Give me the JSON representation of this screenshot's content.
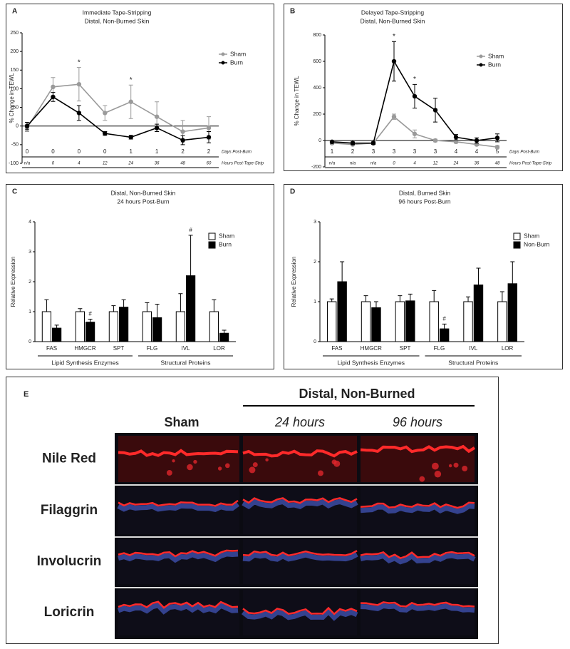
{
  "chart_data": [
    {
      "type": "line",
      "label": "A",
      "title": "Immediate Tape-Stripping",
      "subtitle": "Distal, Non-Burned Skin",
      "y_label": "% Change in TEWL",
      "categories": [
        "n/a",
        "0",
        "4",
        "12",
        "24",
        "36",
        "48",
        "60"
      ],
      "categories_label": "Hours Post-Tape-Strip",
      "days": [
        0,
        0,
        0,
        0,
        1,
        1,
        2,
        2
      ],
      "days_label": "Days Post-Burn",
      "series": [
        {
          "name": "Sham",
          "color": "#9a9a9a",
          "values": [
            -5,
            105,
            112,
            35,
            65,
            25,
            -15,
            -5
          ],
          "errors": [
            10,
            25,
            45,
            20,
            45,
            40,
            30,
            30
          ]
        },
        {
          "name": "Burn",
          "color": "#000000",
          "values": [
            0,
            78,
            35,
            -20,
            -30,
            -5,
            -38,
            -30
          ],
          "errors": [
            10,
            12,
            20,
            5,
            5,
            10,
            12,
            15
          ]
        }
      ],
      "markers": [
        null,
        null,
        "*",
        null,
        "*",
        null,
        null,
        null
      ],
      "ylim": [
        -100,
        250
      ],
      "yticks": [
        -100,
        -50,
        0,
        50,
        100,
        150,
        200,
        250
      ],
      "legend": "upper right"
    },
    {
      "type": "line",
      "label": "B",
      "title": "Delayed Tape-Stripping",
      "subtitle": "Distal, Non-Burned Skin",
      "y_label": "% Change in TEWL",
      "categories": [
        "n/a",
        "n/a",
        "n/a",
        "0",
        "4",
        "12",
        "24",
        "36",
        "48"
      ],
      "categories_label": "Hours Post-Tape-Strip",
      "days": [
        1,
        2,
        3,
        3,
        3,
        3,
        4,
        4,
        5
      ],
      "days_label": "Days Post-Burn",
      "series": [
        {
          "name": "Sham",
          "color": "#9a9a9a",
          "values": [
            -20,
            -30,
            -20,
            180,
            50,
            0,
            -10,
            -30,
            -50
          ],
          "errors": [
            10,
            10,
            10,
            20,
            30,
            10,
            10,
            10,
            10
          ]
        },
        {
          "name": "Burn",
          "color": "#000000",
          "values": [
            -10,
            -20,
            -20,
            600,
            335,
            230,
            25,
            0,
            20
          ],
          "errors": [
            10,
            10,
            10,
            150,
            90,
            90,
            20,
            20,
            30
          ]
        }
      ],
      "markers": [
        null,
        null,
        null,
        "*",
        "*",
        null,
        null,
        null,
        null
      ],
      "ylim": [
        -200,
        800
      ],
      "yticks": [
        -200,
        0,
        200,
        400,
        600,
        800
      ],
      "legend": "upper right"
    },
    {
      "type": "bar",
      "label": "C",
      "title": "Distal, Non-Burned Skin",
      "subtitle": "24 hours Post-Burn",
      "y_label": "Relative Expression",
      "categories": [
        "FAS",
        "HMGCR",
        "SPT",
        "FLG",
        "IVL",
        "LOR"
      ],
      "category_groups": [
        "Lipid Synthesis Enzymes",
        "Lipid Synthesis Enzymes",
        "Lipid Synthesis Enzymes",
        "Structural Proteins",
        "Structural Proteins",
        "Structural Proteins"
      ],
      "series": [
        {
          "name": "Sham",
          "color": "#ffffff",
          "values": [
            1,
            1,
            1,
            1,
            1,
            1
          ],
          "errors": [
            0.4,
            0.1,
            0.2,
            0.3,
            0.6,
            0.4
          ]
        },
        {
          "name": "Burn",
          "color": "#000000",
          "values": [
            0.45,
            0.65,
            1.15,
            0.8,
            2.2,
            0.28
          ],
          "errors": [
            0.1,
            0.1,
            0.25,
            0.45,
            1.35,
            0.1
          ]
        }
      ],
      "markers": [
        null,
        "#",
        null,
        null,
        "#",
        null
      ],
      "ylim": [
        0,
        4
      ],
      "yticks": [
        0,
        1,
        2,
        3,
        4
      ],
      "legend": "upper right"
    },
    {
      "type": "bar",
      "label": "D",
      "title": "Distal, Burned Skin",
      "subtitle": "96 hours Post-Burn",
      "y_label": "Relative Expression",
      "categories": [
        "FAS",
        "HMGCR",
        "SPT",
        "FLG",
        "IVL",
        "LOR"
      ],
      "category_groups": [
        "Lipid Synthesis Enzymes",
        "Lipid Synthesis Enzymes",
        "Lipid Synthesis Enzymes",
        "Structural Proteins",
        "Structural Proteins",
        "Structural Proteins"
      ],
      "series": [
        {
          "name": "Sham",
          "color": "#ffffff",
          "values": [
            1,
            1,
            1,
            1,
            1,
            1
          ],
          "errors": [
            0.07,
            0.15,
            0.15,
            0.28,
            0.12,
            0.25
          ]
        },
        {
          "name": "Non-Burn",
          "color": "#000000",
          "values": [
            1.5,
            0.85,
            1.02,
            0.32,
            1.42,
            1.45
          ],
          "errors": [
            0.5,
            0.15,
            0.17,
            0.12,
            0.42,
            0.55
          ]
        }
      ],
      "markers": [
        null,
        null,
        null,
        "#",
        null,
        null
      ],
      "ylim": [
        0,
        3
      ],
      "yticks": [
        0,
        1,
        2,
        3
      ],
      "legend": "upper right"
    }
  ],
  "image_panel": {
    "label": "E",
    "header": "Distal, Non-Burned",
    "columns": [
      "Sham",
      "24 hours",
      "96 hours"
    ],
    "rows": [
      "Nile Red",
      "Filaggrin",
      "Involucrin",
      "Loricrin"
    ]
  }
}
